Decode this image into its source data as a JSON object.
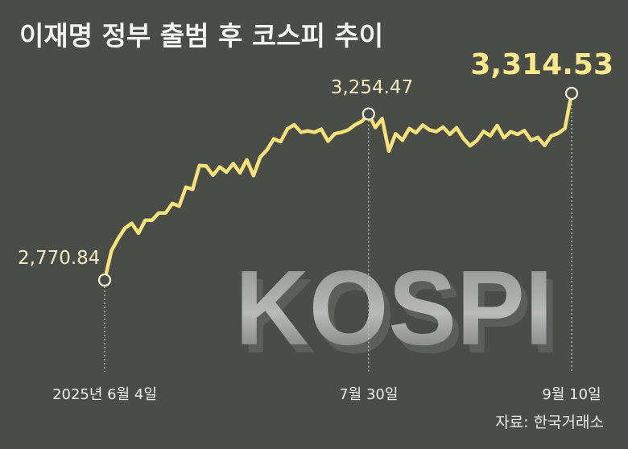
{
  "title": "이재명 정부 출범 후 코스피 추이",
  "source": "자료: 한국거래소",
  "watermark": "KOSPI",
  "colors": {
    "background": "#4a4c48",
    "line": "#f6e27a",
    "highlight": "#f9e98a",
    "text": "#ecece8",
    "guide": "#c8c8c2"
  },
  "chart_data": {
    "type": "line",
    "title": "이재명 정부 출범 후 코스피 추이",
    "xlabel": "",
    "ylabel": "",
    "grid": false,
    "legend": "none",
    "ylim": [
      2700,
      3360
    ],
    "x_ticks": [
      "2025년 6월 4일",
      "7월 30일",
      "9월 10일"
    ],
    "annotations": [
      {
        "label": "2,770.84",
        "index": 0
      },
      {
        "label": "3,254.47",
        "index": 39
      },
      {
        "label": "3,314.53",
        "index": 69,
        "emphasis": true
      }
    ],
    "series": [
      {
        "values": [
          2770.84,
          2856,
          2892,
          2922,
          2936,
          2907,
          2945,
          2945,
          2966,
          2966,
          2994,
          2986,
          3041,
          3035,
          3104,
          3103,
          3076,
          3100,
          3085,
          3110,
          3083,
          3121,
          3075,
          3129,
          3150,
          3182,
          3174,
          3211,
          3223,
          3201,
          3205,
          3201,
          3210,
          3175,
          3197,
          3201,
          3208,
          3223,
          3233,
          3254.47,
          3215,
          3241,
          3146,
          3197,
          3178,
          3212,
          3200,
          3222,
          3208,
          3203,
          3216,
          3195,
          3214,
          3183,
          3162,
          3177,
          3204,
          3191,
          3221,
          3185,
          3203,
          3195,
          3206,
          3178,
          3186,
          3163,
          3191,
          3198,
          3212,
          3314.53
        ]
      }
    ]
  }
}
